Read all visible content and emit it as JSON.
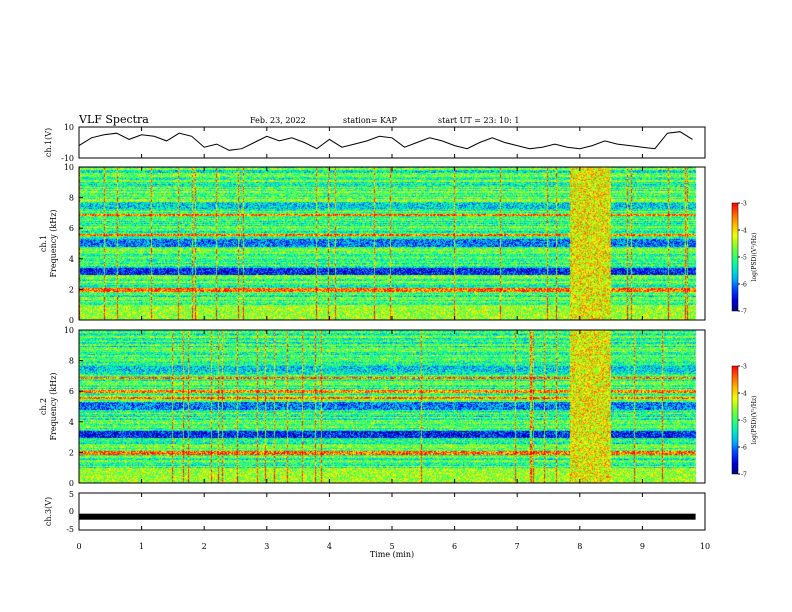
{
  "header": {
    "title": "VLF Spectra",
    "date": "Feb. 23, 2022",
    "station": "station= KAP",
    "start": "start  UT  =   23: 10: 1"
  },
  "colors": {
    "trace": "#000000",
    "colormap": [
      "#000080",
      "#0000ff",
      "#00aaff",
      "#00ffaa",
      "#66ff33",
      "#ffff00",
      "#ff8800",
      "#ff0000",
      "#ffffff"
    ]
  },
  "chart_data": [
    {
      "type": "line",
      "panel": "ch1-waveform",
      "ylabel": "ch.1(V)",
      "ylim": [
        -10,
        10
      ],
      "yticks": [
        "10",
        "-10"
      ],
      "xlim": [
        0,
        10
      ],
      "series": [
        {
          "x": [
            0,
            0.2,
            0.4,
            0.6,
            0.8,
            1.0,
            1.2,
            1.4,
            1.6,
            1.8,
            2.0,
            2.2,
            2.4,
            2.6,
            2.8,
            3.0,
            3.2,
            3.4,
            3.6,
            3.8,
            4.0,
            4.2,
            4.4,
            4.6,
            4.8,
            5.0,
            5.2,
            5.4,
            5.6,
            5.8,
            6.0,
            6.2,
            6.4,
            6.6,
            6.8,
            7.0,
            7.2,
            7.4,
            7.6,
            7.8,
            8.0,
            8.2,
            8.4,
            8.6,
            8.8,
            9.0,
            9.2,
            9.4,
            9.6,
            9.8
          ],
          "y": [
            -2,
            3,
            5,
            6,
            2,
            5,
            4,
            1,
            6,
            4,
            -3,
            -1,
            -5,
            -4,
            0,
            4,
            1,
            3,
            0,
            -4,
            2,
            -3,
            -1,
            1,
            4,
            3,
            -3,
            0,
            3,
            1,
            -2,
            -4,
            0,
            3,
            0,
            -2,
            -4,
            -3,
            -1,
            -3,
            -4,
            -2,
            1,
            -1,
            -2,
            -3,
            -4,
            6,
            7,
            2
          ]
        }
      ]
    },
    {
      "type": "heatmap",
      "panel": "ch1-spectrogram",
      "ylabel": "ch.1 Frequency (kHz)",
      "ylim": [
        0,
        10
      ],
      "yticks": [
        "0",
        "2",
        "4",
        "6",
        "8",
        "10"
      ],
      "xlim": [
        0,
        10
      ],
      "colorbar": {
        "label": "log(PSD)(V²/Hz)",
        "range": [
          -7,
          -3
        ],
        "ticks": [
          "-3",
          "-4",
          "-5",
          "-6",
          "-7"
        ]
      }
    },
    {
      "type": "heatmap",
      "panel": "ch2-spectrogram",
      "ylabel": "ch.2 Frequency (kHz)",
      "ylim": [
        0,
        10
      ],
      "yticks": [
        "0",
        "2",
        "4",
        "6",
        "8",
        "10"
      ],
      "xlim": [
        0,
        10
      ],
      "colorbar": {
        "label": "log(PSD)(V²/Hz)",
        "range": [
          -7,
          -3
        ],
        "ticks": [
          "-3",
          "-4",
          "-5",
          "-6",
          "-7"
        ]
      }
    },
    {
      "type": "line",
      "panel": "ch3-waveform",
      "ylabel": "ch.3(V)",
      "ylim": [
        -5,
        5
      ],
      "yticks": [
        "5",
        "0",
        "-5"
      ],
      "xlim": [
        0,
        10
      ],
      "xlabel": "Time  (min)",
      "xticks": [
        "0",
        "1",
        "2",
        "3",
        "4",
        "5",
        "6",
        "7",
        "8",
        "9",
        "10"
      ],
      "series": [
        {
          "x": [
            0,
            9.85
          ],
          "y": [
            -1.4,
            -1.4
          ]
        }
      ]
    }
  ]
}
